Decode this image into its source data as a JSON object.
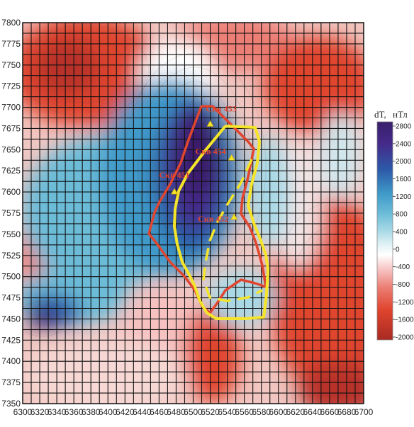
{
  "chart_data": {
    "type": "heatmap",
    "title": "",
    "x_ticks": [
      "6300",
      "6320",
      "6340",
      "6360",
      "6380",
      "6400",
      "6420",
      "6440",
      "6460",
      "6480",
      "6500",
      "6520",
      "6540",
      "6560",
      "6580",
      "6600",
      "6620",
      "6640",
      "6660",
      "6680",
      "6700"
    ],
    "y_ticks": [
      "7800",
      "7775",
      "7750",
      "7725",
      "7700",
      "7675",
      "7650",
      "7625",
      "7600",
      "7575",
      "7550",
      "7525",
      "7500",
      "7475",
      "7450",
      "7425",
      "7400",
      "7375",
      "7350"
    ],
    "xlim": [
      6300,
      6700
    ],
    "ylim": [
      7350,
      7800
    ],
    "colorbar": {
      "label_main": "dT,",
      "label_unit": "нТл",
      "ticks": [
        "2800",
        "2400",
        "2000",
        "1600",
        "1200",
        "800",
        "400",
        "0",
        "-400",
        "-800",
        "-1200",
        "-1600",
        "-2000"
      ],
      "colors": [
        "#3a1f6b",
        "#452a8a",
        "#2c5aa8",
        "#3f9ac9",
        "#6cbcd8",
        "#a8d9e6",
        "#dff0f4",
        "#ffffff",
        "#f6c1c0",
        "#ec7e74",
        "#e0452f",
        "#c9382a",
        "#a82a22"
      ]
    },
    "wells": [
      {
        "label": "Скв 453",
        "x": 6520,
        "y": 7680
      },
      {
        "label": "Скв 454",
        "x": 6545,
        "y": 7640
      },
      {
        "label": "Скв 451",
        "x": 6478,
        "y": 7600
      },
      {
        "label": "Скв 452",
        "x": 6548,
        "y": 7570
      }
    ],
    "outline_colors": {
      "red": "#e0452f",
      "yellow": "#f5e52a"
    }
  }
}
